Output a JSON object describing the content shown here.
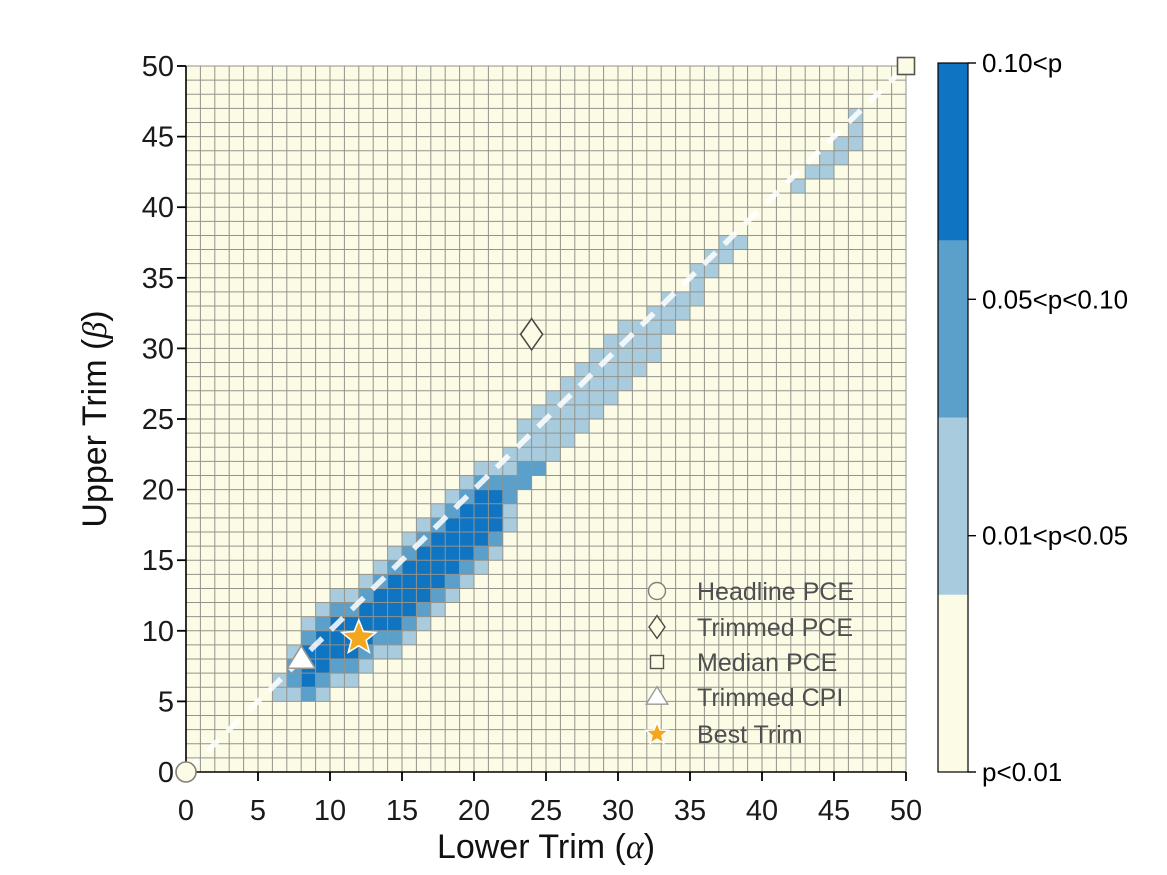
{
  "chart_data": {
    "type": "heatmap",
    "title": "",
    "xlabel": {
      "prefix": "Lower Trim (",
      "symbol": "α",
      "suffix": ")"
    },
    "ylabel": {
      "prefix": "Upper Trim (",
      "symbol": "β",
      "suffix": ")"
    },
    "xlim": [
      0,
      50
    ],
    "ylim": [
      0,
      50
    ],
    "x_ticks": [
      0,
      5,
      10,
      15,
      20,
      25,
      30,
      35,
      40,
      45,
      50
    ],
    "y_ticks": [
      0,
      5,
      10,
      15,
      20,
      25,
      30,
      35,
      40,
      45,
      50
    ],
    "grid": true,
    "grid_step": 1,
    "categories": {
      "D": {
        "label": "0.10<p",
        "color": "#0F74C2"
      },
      "M": {
        "label": "0.05<p<0.10",
        "color": "#5B9FCB"
      },
      "L": {
        "label": "0.01<p<0.05",
        "color": "#A9CBDE"
      },
      "C": {
        "label": "p<0.01",
        "color": "#FBFBE6"
      }
    },
    "cell_spans": [
      {
        "x": 6,
        "spans": [
          [
            5,
            6,
            "L"
          ]
        ]
      },
      {
        "x": 7,
        "spans": [
          [
            5,
            5,
            "L"
          ],
          [
            6,
            7,
            "M"
          ],
          [
            8,
            8,
            "L"
          ]
        ]
      },
      {
        "x": 8,
        "spans": [
          [
            5,
            5,
            "M"
          ],
          [
            6,
            8,
            "D"
          ],
          [
            9,
            9,
            "M"
          ],
          [
            10,
            10,
            "L"
          ]
        ]
      },
      {
        "x": 9,
        "spans": [
          [
            5,
            5,
            "L"
          ],
          [
            6,
            6,
            "M"
          ],
          [
            7,
            9,
            "D"
          ],
          [
            10,
            10,
            "M"
          ],
          [
            11,
            11,
            "L"
          ]
        ]
      },
      {
        "x": 10,
        "spans": [
          [
            6,
            6,
            "L"
          ],
          [
            7,
            7,
            "M"
          ],
          [
            8,
            10,
            "D"
          ],
          [
            11,
            11,
            "M"
          ],
          [
            12,
            12,
            "L"
          ]
        ]
      },
      {
        "x": 11,
        "spans": [
          [
            6,
            6,
            "L"
          ],
          [
            7,
            7,
            "M"
          ],
          [
            8,
            10,
            "D"
          ],
          [
            11,
            11,
            "M"
          ],
          [
            12,
            12,
            "L"
          ]
        ]
      },
      {
        "x": 12,
        "spans": [
          [
            7,
            7,
            "L"
          ],
          [
            8,
            8,
            "M"
          ],
          [
            9,
            11,
            "D"
          ],
          [
            12,
            12,
            "M"
          ],
          [
            13,
            13,
            "L"
          ]
        ]
      },
      {
        "x": 13,
        "spans": [
          [
            8,
            8,
            "L"
          ],
          [
            9,
            9,
            "M"
          ],
          [
            10,
            12,
            "D"
          ],
          [
            13,
            13,
            "M"
          ],
          [
            14,
            14,
            "L"
          ]
        ]
      },
      {
        "x": 14,
        "spans": [
          [
            8,
            8,
            "L"
          ],
          [
            9,
            9,
            "M"
          ],
          [
            10,
            13,
            "D"
          ],
          [
            14,
            14,
            "M"
          ],
          [
            15,
            15,
            "L"
          ]
        ]
      },
      {
        "x": 15,
        "spans": [
          [
            9,
            9,
            "L"
          ],
          [
            10,
            10,
            "M"
          ],
          [
            11,
            14,
            "D"
          ],
          [
            15,
            15,
            "M"
          ],
          [
            16,
            16,
            "L"
          ]
        ]
      },
      {
        "x": 16,
        "spans": [
          [
            10,
            10,
            "L"
          ],
          [
            11,
            11,
            "M"
          ],
          [
            12,
            15,
            "D"
          ],
          [
            16,
            16,
            "M"
          ],
          [
            17,
            17,
            "L"
          ]
        ]
      },
      {
        "x": 17,
        "spans": [
          [
            11,
            11,
            "L"
          ],
          [
            12,
            12,
            "M"
          ],
          [
            13,
            16,
            "D"
          ],
          [
            17,
            17,
            "M"
          ],
          [
            18,
            18,
            "L"
          ]
        ]
      },
      {
        "x": 18,
        "spans": [
          [
            12,
            12,
            "L"
          ],
          [
            13,
            13,
            "M"
          ],
          [
            14,
            17,
            "D"
          ],
          [
            18,
            18,
            "M"
          ],
          [
            19,
            19,
            "L"
          ]
        ]
      },
      {
        "x": 19,
        "spans": [
          [
            13,
            13,
            "L"
          ],
          [
            14,
            14,
            "M"
          ],
          [
            15,
            18,
            "D"
          ],
          [
            19,
            19,
            "M"
          ],
          [
            20,
            20,
            "L"
          ]
        ]
      },
      {
        "x": 20,
        "spans": [
          [
            14,
            14,
            "L"
          ],
          [
            15,
            15,
            "M"
          ],
          [
            16,
            19,
            "D"
          ],
          [
            20,
            20,
            "M"
          ],
          [
            21,
            21,
            "L"
          ]
        ]
      },
      {
        "x": 21,
        "spans": [
          [
            15,
            15,
            "L"
          ],
          [
            16,
            16,
            "M"
          ],
          [
            17,
            19,
            "D"
          ],
          [
            20,
            20,
            "M"
          ],
          [
            21,
            21,
            "L"
          ]
        ]
      },
      {
        "x": 22,
        "spans": [
          [
            17,
            18,
            "L"
          ],
          [
            19,
            20,
            "M"
          ],
          [
            21,
            22,
            "L"
          ]
        ]
      },
      {
        "x": 23,
        "spans": [
          [
            20,
            21,
            "M"
          ],
          [
            22,
            24,
            "L"
          ]
        ]
      },
      {
        "x": 24,
        "spans": [
          [
            21,
            21,
            "M"
          ],
          [
            22,
            25,
            "L"
          ]
        ]
      },
      {
        "x": 25,
        "spans": [
          [
            22,
            26,
            "L"
          ]
        ]
      },
      {
        "x": 26,
        "spans": [
          [
            23,
            27,
            "L"
          ]
        ]
      },
      {
        "x": 27,
        "spans": [
          [
            24,
            28,
            "L"
          ]
        ]
      },
      {
        "x": 28,
        "spans": [
          [
            25,
            29,
            "L"
          ]
        ]
      },
      {
        "x": 29,
        "spans": [
          [
            26,
            30,
            "L"
          ]
        ]
      },
      {
        "x": 30,
        "spans": [
          [
            27,
            31,
            "L"
          ]
        ]
      },
      {
        "x": 31,
        "spans": [
          [
            28,
            31,
            "L"
          ]
        ]
      },
      {
        "x": 32,
        "spans": [
          [
            29,
            32,
            "L"
          ]
        ]
      },
      {
        "x": 33,
        "spans": [
          [
            31,
            33,
            "L"
          ]
        ]
      },
      {
        "x": 34,
        "spans": [
          [
            32,
            33,
            "L"
          ]
        ]
      },
      {
        "x": 35,
        "spans": [
          [
            33,
            35,
            "L"
          ]
        ]
      },
      {
        "x": 36,
        "spans": [
          [
            35,
            36,
            "L"
          ]
        ]
      },
      {
        "x": 37,
        "spans": [
          [
            36,
            37,
            "L"
          ]
        ]
      },
      {
        "x": 38,
        "spans": [
          [
            37,
            37,
            "L"
          ]
        ]
      },
      {
        "x": 42,
        "spans": [
          [
            41,
            41,
            "L"
          ]
        ]
      },
      {
        "x": 43,
        "spans": [
          [
            42,
            42,
            "L"
          ]
        ]
      },
      {
        "x": 44,
        "spans": [
          [
            42,
            43,
            "L"
          ]
        ]
      },
      {
        "x": 45,
        "spans": [
          [
            43,
            44,
            "L"
          ]
        ]
      },
      {
        "x": 46,
        "spans": [
          [
            44,
            46,
            "L"
          ]
        ]
      }
    ],
    "diagonal_line": {
      "x1": 0,
      "y1": 0,
      "x2": 50,
      "y2": 50,
      "style": "dashed",
      "color": "#FFFFFF",
      "opacity": 0.85
    },
    "markers": [
      {
        "name": "Headline PCE",
        "shape": "circle",
        "x": 0,
        "y": 0,
        "fill": "#FBFBE6",
        "stroke": "#82827A"
      },
      {
        "name": "Trimmed PCE",
        "shape": "diamond",
        "x": 24,
        "y": 31,
        "fill": "#FBFBE6",
        "stroke": "#4A4A45"
      },
      {
        "name": "Median PCE",
        "shape": "square",
        "x": 50,
        "y": 50,
        "fill": "#FBFBE6",
        "stroke": "#55554E"
      },
      {
        "name": "Trimmed CPI",
        "shape": "triangle",
        "x": 8,
        "y": 8,
        "fill": "#FFFFFF",
        "stroke": "#9A9A94"
      },
      {
        "name": "Best Trim",
        "shape": "star",
        "x": 12,
        "y": 9.5,
        "fill": "#F2A71F",
        "stroke": "#FFFFFF"
      }
    ],
    "legend": {
      "position": "inside lower right",
      "entries": [
        {
          "shape": "circle",
          "label": "Headline PCE"
        },
        {
          "shape": "diamond",
          "label": "Trimmed PCE"
        },
        {
          "shape": "square",
          "label": "Median PCE"
        },
        {
          "shape": "triangle",
          "label": "Trimmed CPI"
        },
        {
          "shape": "star",
          "label": "Best Trim"
        }
      ]
    },
    "colorbar": {
      "segments_top_to_bottom": [
        "D",
        "M",
        "L",
        "C"
      ],
      "tick_labels_top_to_bottom": [
        "0.10<p",
        "0.05<p<0.10",
        "0.01<p<0.05",
        "p<0.01"
      ],
      "tick_fractions_top_to_bottom": [
        0,
        0.3333,
        0.6667,
        1
      ]
    },
    "palette": {
      "plot_background": "#FBFBE6",
      "grid_line": "#93938B",
      "axis_line": "#000000",
      "tick_text": "#1A1A1A",
      "legend_text": "#4F4F4F",
      "star_gold": "#F2A71F"
    }
  }
}
